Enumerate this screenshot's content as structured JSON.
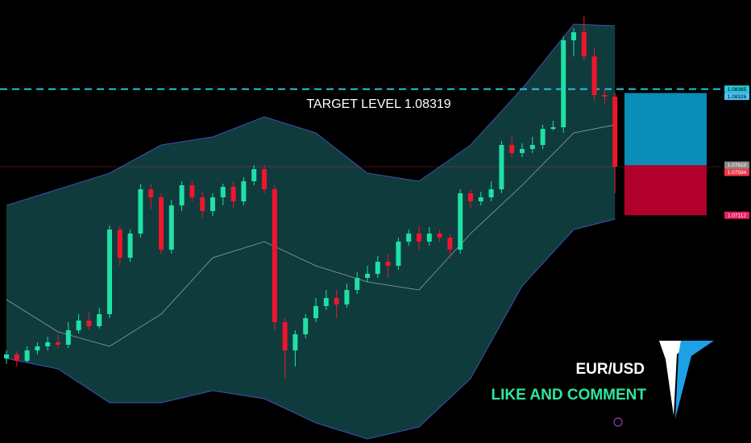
{
  "chart_data": {
    "type": "candlestick",
    "annotation": "TARGET LEVEL 1.08319",
    "symbol": "EUR/USD",
    "call_to_action": "LIKE AND COMMENT",
    "ylim": [
      1.0485,
      1.0925
    ],
    "up_color": "#1fe0a6",
    "down_color": "#f0152d",
    "open": [
      1.0569,
      1.0573,
      1.05666,
      1.0577,
      1.0581,
      1.0585,
      1.05826,
      1.0597,
      1.06066,
      1.0601,
      1.0613,
      1.0697,
      1.0669,
      1.0693,
      1.0737,
      1.0729,
      1.0677,
      1.0721,
      1.0741,
      1.0729,
      1.07154,
      1.0729,
      1.07394,
      1.0725,
      1.0745,
      1.0757,
      1.0737,
      1.0605,
      1.0577,
      1.0593,
      1.0609,
      1.0621,
      1.0629,
      1.06226,
      1.0637,
      1.0649,
      1.0653,
      1.0665,
      1.0661,
      1.0685,
      1.0693,
      1.0685,
      1.0693,
      1.0689,
      1.0677,
      1.0733,
      1.0725,
      1.0729,
      1.0737,
      1.0781,
      1.0773,
      1.0777,
      1.0781,
      1.0797,
      1.07986,
      1.0885,
      1.0893,
      1.0869,
      1.08306,
      1.0829
    ],
    "high": [
      1.0577,
      1.05762,
      1.0581,
      1.0585,
      1.05906,
      1.0593,
      1.0605,
      1.0613,
      1.06146,
      1.06194,
      1.0701,
      1.0701,
      1.0697,
      1.07426,
      1.07426,
      1.0733,
      1.07266,
      1.0745,
      1.0745,
      1.07346,
      1.0733,
      1.07426,
      1.0745,
      1.0749,
      1.0761,
      1.0761,
      1.0741,
      1.0609,
      1.0597,
      1.0613,
      1.0629,
      1.0637,
      1.0637,
      1.06434,
      1.06546,
      1.0661,
      1.06706,
      1.0673,
      1.0689,
      1.0697,
      1.0701,
      1.06994,
      1.0697,
      1.0693,
      1.0737,
      1.0737,
      1.07346,
      1.0745,
      1.0785,
      1.0789,
      1.07826,
      1.0789,
      1.0801,
      1.0805,
      1.0889,
      1.0897,
      1.0909,
      1.0877,
      1.0837,
      1.0833
    ],
    "low": [
      1.05634,
      1.0561,
      1.0565,
      1.0573,
      1.0577,
      1.05794,
      1.05794,
      1.05938,
      1.0597,
      1.05986,
      1.0609,
      1.0661,
      1.0665,
      1.0689,
      1.0717,
      1.0673,
      1.0673,
      1.07154,
      1.0725,
      1.0709,
      1.07106,
      1.0721,
      1.07186,
      1.0721,
      1.0741,
      1.0733,
      1.0597,
      1.0549,
      1.0561,
      1.0589,
      1.0605,
      1.0617,
      1.0609,
      1.06194,
      1.0633,
      1.0645,
      1.0649,
      1.0649,
      1.0657,
      1.0681,
      1.0677,
      1.0681,
      1.0685,
      1.0669,
      1.0673,
      1.07186,
      1.0721,
      1.0725,
      1.0733,
      1.0769,
      1.0769,
      1.0773,
      1.0777,
      1.07954,
      1.0793,
      1.0869,
      1.0865,
      1.0825,
      1.0821,
      1.0733
    ],
    "close": [
      1.0573,
      1.05666,
      1.0577,
      1.0581,
      1.0585,
      1.05826,
      1.0597,
      1.06066,
      1.0601,
      1.0613,
      1.0697,
      1.0669,
      1.0693,
      1.0737,
      1.0729,
      1.0677,
      1.0721,
      1.0741,
      1.0729,
      1.07154,
      1.0729,
      1.07394,
      1.0725,
      1.0745,
      1.0757,
      1.0737,
      1.0605,
      1.0577,
      1.0593,
      1.0609,
      1.0621,
      1.0629,
      1.06226,
      1.0637,
      1.0649,
      1.0653,
      1.0665,
      1.0661,
      1.0685,
      1.0693,
      1.0685,
      1.0693,
      1.0689,
      1.0677,
      1.0733,
      1.0725,
      1.0729,
      1.0737,
      1.0781,
      1.0773,
      1.0777,
      1.0781,
      1.0797,
      1.07986,
      1.0885,
      1.0893,
      1.0869,
      1.08306,
      1.0829,
      1.07594
    ],
    "bands": {
      "index": [
        0,
        5,
        10,
        15,
        20,
        25,
        30,
        35,
        40,
        45,
        50,
        55,
        59
      ],
      "upper": [
        1.0721,
        1.0737,
        1.0753,
        1.0781,
        1.0789,
        1.0809,
        1.0793,
        1.0753,
        1.0745,
        1.0781,
        1.0837,
        1.0901,
        1.08994
      ],
      "middle": [
        1.06274,
        1.05954,
        1.0581,
        1.0613,
        1.0669,
        1.0685,
        1.0661,
        1.0645,
        1.0637,
        1.0693,
        1.0741,
        1.0793,
        1.0801
      ],
      "lower": [
        1.0569,
        1.05586,
        1.0525,
        1.0525,
        1.0537,
        1.0529,
        1.0505,
        1.0489,
        1.0501,
        1.0549,
        1.0641,
        1.0697,
        1.07074
      ]
    },
    "price_labels": [
      {
        "value": 1.08365,
        "label": "1.08365",
        "color": "#26c6da"
      },
      {
        "value": 1.08326,
        "label": "1.08326",
        "color": "#4fc3f7"
      },
      {
        "value": 1.0761,
        "label": "1.07610",
        "color": "#8a8a8a"
      },
      {
        "value": 1.07594,
        "label": "1.07594",
        "color": "#f23645"
      },
      {
        "value": 1.07112,
        "label": "1.07112",
        "color": "#e91e63"
      }
    ],
    "profit_color": "#0a8db8",
    "loss_color": "#b2002c"
  }
}
